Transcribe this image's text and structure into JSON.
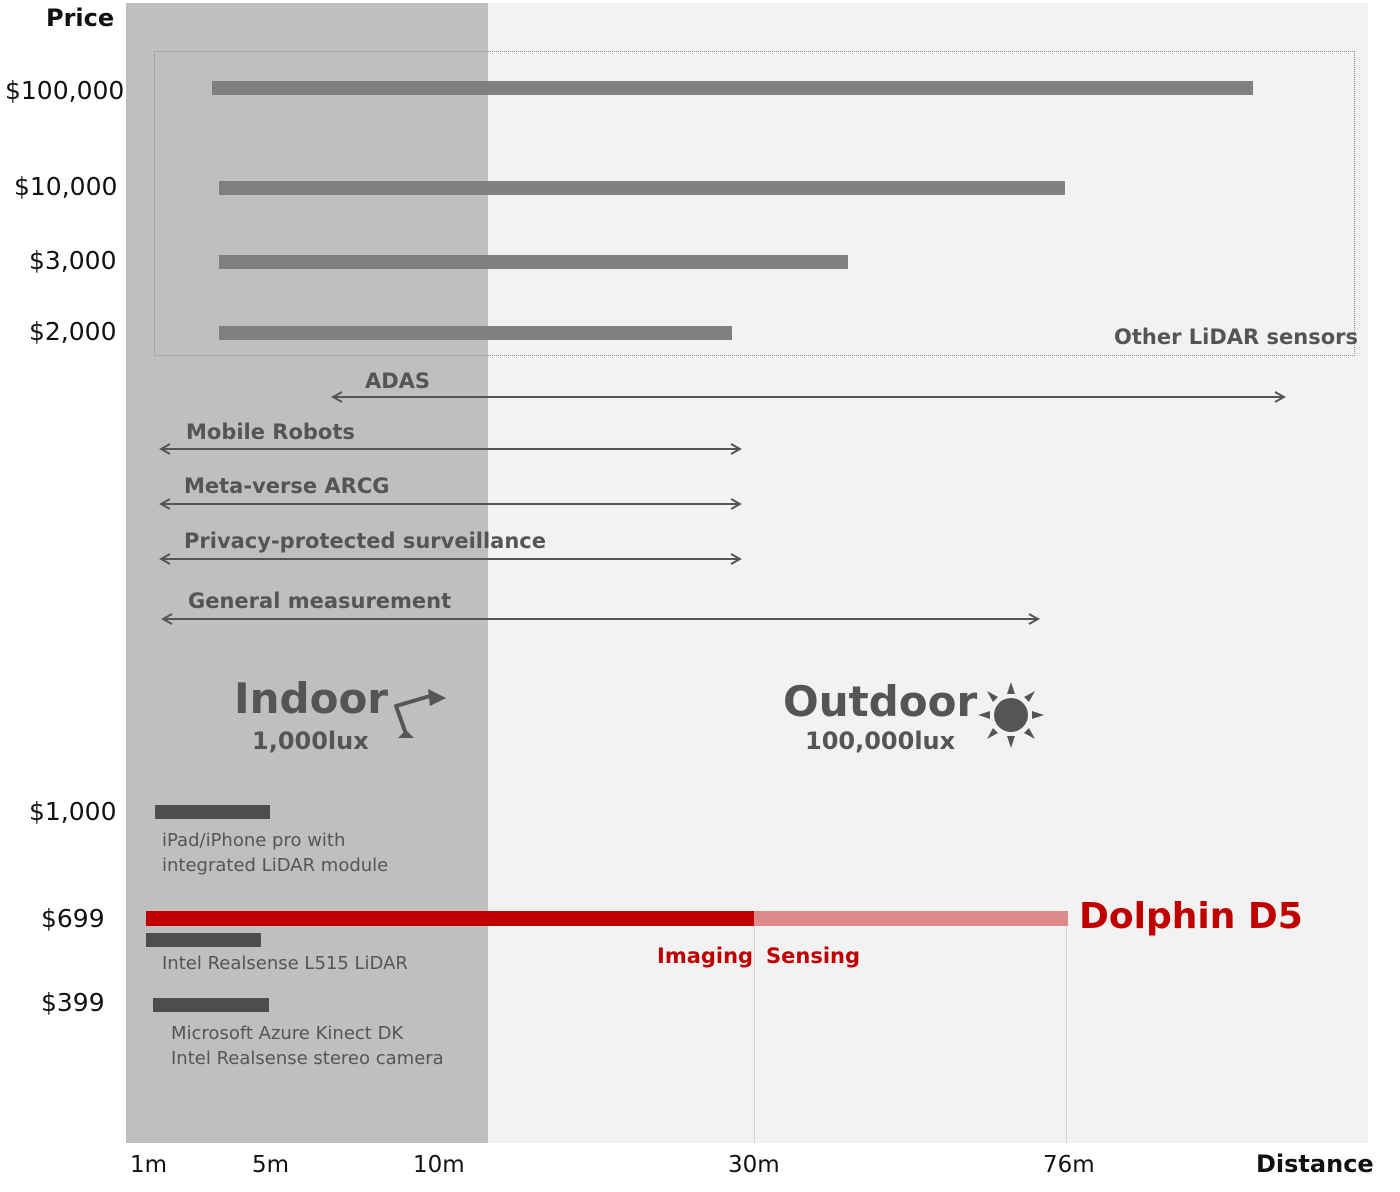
{
  "chart_data": {
    "type": "bar",
    "title": "",
    "ylabel": "Price",
    "xlabel": "Distance",
    "x_ticks": [
      "1m",
      "5m",
      "10m",
      "30m",
      "76m"
    ],
    "y_ticks": [
      "$100,000",
      "$10,000",
      "$3,000",
      "$2,000",
      "$1,000",
      "$699",
      "$399"
    ],
    "zones": {
      "indoor": {
        "label": "Indoor",
        "lux": "1,000lux"
      },
      "outdoor": {
        "label": "Outdoor",
        "lux": "100,000lux"
      }
    },
    "other_lidar": {
      "label": "Other LiDAR sensors",
      "bars": [
        {
          "price": "$100,000"
        },
        {
          "price": "$10,000"
        },
        {
          "price": "$3,000"
        },
        {
          "price": "$2,000"
        }
      ]
    },
    "applications": [
      {
        "name": "ADAS"
      },
      {
        "name": "Mobile Robots"
      },
      {
        "name": "Meta-verse ARCG"
      },
      {
        "name": "Privacy-protected surveillance"
      },
      {
        "name": "General measurement"
      }
    ],
    "devices": [
      {
        "price": "$1,000",
        "lines": [
          "iPad/iPhone pro with",
          "integrated LiDAR module"
        ]
      },
      {
        "price": "$699",
        "lines": [
          "Intel Realsense L515 LiDAR"
        ]
      },
      {
        "price": "$399",
        "lines": [
          "Microsoft Azure Kinect DK",
          "Intel Realsense stereo camera"
        ]
      }
    ],
    "dolphin": {
      "name": "Dolphin D5",
      "price": "$699",
      "imaging_label": "Imaging",
      "sensing_label": "Sensing",
      "imaging_range": [
        "1m",
        "30m"
      ],
      "sensing_range": [
        "30m",
        "76m"
      ]
    },
    "colors": {
      "indoor_bg": "#bfbfbf",
      "outdoor_bg": "#f2f2f2",
      "other_bars": "#808080",
      "device_bars": "#4d4d4d",
      "dolphin_imaging": "#c00000",
      "dolphin_sensing": "#dc8a8a"
    }
  }
}
